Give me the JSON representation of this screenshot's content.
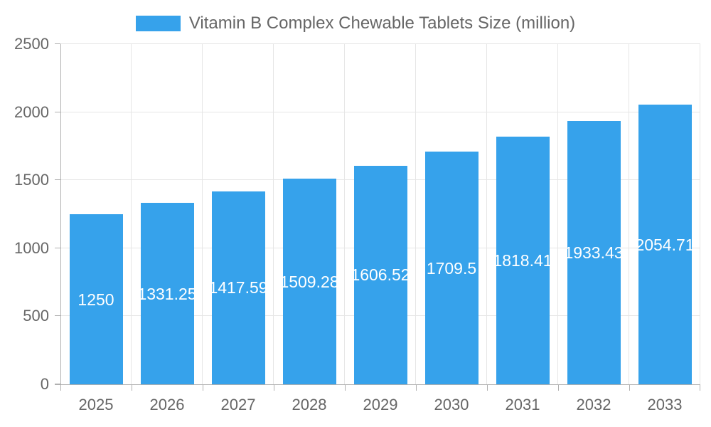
{
  "chart_data": {
    "type": "bar",
    "title": "Vitamin B Complex Chewable Tablets Size (million)",
    "legend": {
      "position": "top",
      "entries": [
        {
          "label": "Vitamin B Complex Chewable Tablets Size (million)",
          "color": "#36A2EB"
        }
      ]
    },
    "categories": [
      "2025",
      "2026",
      "2027",
      "2028",
      "2029",
      "2030",
      "2031",
      "2032",
      "2033"
    ],
    "values": [
      1250,
      1331.25,
      1417.59,
      1509.28,
      1606.52,
      1709.5,
      1818.41,
      1933.43,
      2054.71
    ],
    "bar_labels": [
      "1250",
      "1331.25",
      "1417.59",
      "1509.28",
      "1606.52",
      "1709.5",
      "1818.41",
      "1933.43",
      "2054.71"
    ],
    "xlabel": "",
    "ylabel": "",
    "ylim": [
      0,
      2500
    ],
    "yticks": [
      0,
      500,
      1000,
      1500,
      2000,
      2500
    ],
    "grid": true,
    "colors": {
      "bar": "#36A2EB",
      "bar_label_text": "#ffffff",
      "grid_line": "#e6e6e6",
      "axis_line": "#b0b0b0",
      "tick_label": "#666666",
      "legend_label": "#666666"
    }
  }
}
